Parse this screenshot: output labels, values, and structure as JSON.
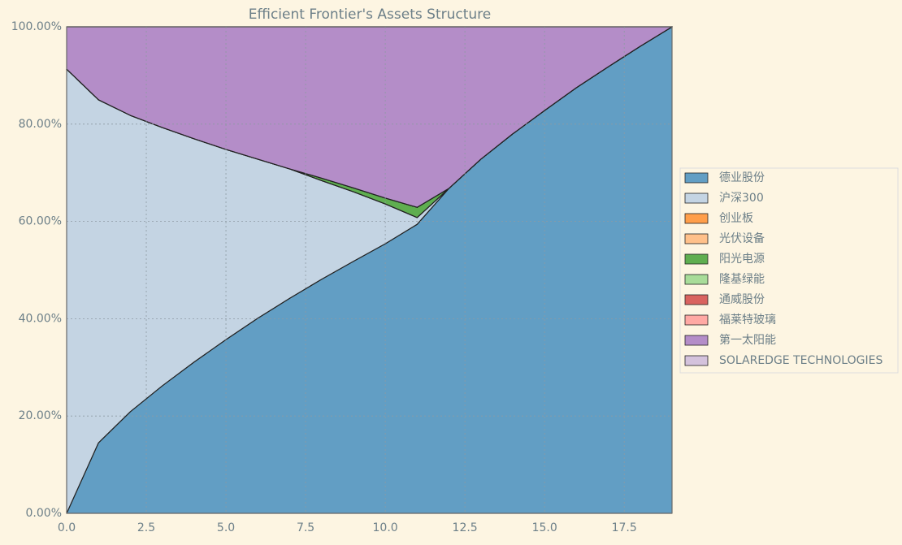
{
  "chart_data": {
    "type": "stacked_area",
    "title": "Efficient Frontier's Assets Structure",
    "x": [
      0,
      1,
      2,
      3,
      4,
      5,
      6,
      7,
      8,
      9,
      10,
      11,
      12,
      13,
      14,
      15,
      16,
      17,
      18,
      19
    ],
    "xlim": [
      0,
      19
    ],
    "xticks": [
      {
        "value": 0,
        "label": "0.0"
      },
      2.5,
      {
        "value": 5,
        "label": "5.0"
      },
      7.5,
      {
        "value": 10,
        "label": "10.0"
      },
      12.5,
      {
        "value": 15,
        "label": "15.0"
      },
      17.5
    ],
    "ylim": [
      0,
      100
    ],
    "yticks": [
      {
        "value": 0,
        "label": "0.00%"
      },
      {
        "value": 20,
        "label": "20.00%"
      },
      {
        "value": 40,
        "label": "40.00%"
      },
      {
        "value": 60,
        "label": "60.00%"
      },
      {
        "value": 80,
        "label": "80.00%"
      },
      {
        "value": 100,
        "label": "100.00%"
      }
    ],
    "grid": true,
    "legend": "right",
    "series": [
      {
        "name": "德业股份",
        "color": "#629ec4",
        "values": [
          0,
          14.5,
          20.9,
          26.2,
          31.1,
          35.7,
          40.1,
          44.2,
          48.1,
          51.8,
          55.4,
          59.4,
          66.8,
          72.8,
          78.0,
          82.8,
          87.5,
          91.8,
          96.0,
          100
        ]
      },
      {
        "name": "沪深300",
        "color": "#c4d4e3",
        "values": [
          91.3,
          70.5,
          60.9,
          53.1,
          45.9,
          39.1,
          32.7,
          26.6,
          20.3,
          14.3,
          8.2,
          1.4,
          0,
          0,
          0,
          0,
          0,
          0,
          0,
          0
        ]
      },
      {
        "name": "创业板",
        "color": "#ff9e4a",
        "values": [
          0,
          0,
          0,
          0,
          0,
          0,
          0,
          0,
          0,
          0,
          0,
          0,
          0,
          0,
          0,
          0,
          0,
          0,
          0,
          0
        ]
      },
      {
        "name": "光伏设备",
        "color": "#ffc08a",
        "values": [
          0,
          0,
          0,
          0,
          0,
          0,
          0,
          0,
          0,
          0,
          0,
          0,
          0,
          0,
          0,
          0,
          0,
          0,
          0,
          0
        ]
      },
      {
        "name": "阳光电源",
        "color": "#5fae50",
        "values": [
          0,
          0,
          0,
          0,
          0,
          0,
          0,
          0,
          0.5,
          0.8,
          1.2,
          2.1,
          0,
          0,
          0,
          0,
          0,
          0,
          0,
          0
        ]
      },
      {
        "name": "隆基绿能",
        "color": "#a8dc99",
        "values": [
          0,
          0,
          0,
          0,
          0,
          0,
          0,
          0,
          0,
          0,
          0,
          0,
          0,
          0,
          0,
          0,
          0,
          0,
          0,
          0
        ]
      },
      {
        "name": "通威股份",
        "color": "#d9635f",
        "values": [
          0,
          0,
          0,
          0,
          0,
          0,
          0,
          0,
          0,
          0,
          0,
          0,
          0,
          0,
          0,
          0,
          0,
          0,
          0,
          0
        ]
      },
      {
        "name": "福莱特玻璃",
        "color": "#ffa9a4",
        "values": [
          0,
          0,
          0,
          0,
          0,
          0,
          0,
          0,
          0,
          0,
          0,
          0,
          0,
          0,
          0,
          0,
          0,
          0,
          0,
          0
        ]
      },
      {
        "name": "第一太阳能",
        "color": "#b48dc8",
        "values": [
          8.7,
          15.0,
          18.2,
          20.7,
          23.0,
          25.2,
          27.2,
          29.2,
          31.1,
          33.1,
          35.2,
          37.1,
          33.2,
          27.2,
          22.0,
          17.2,
          12.5,
          8.2,
          4.0,
          0
        ]
      },
      {
        "name": "SOLAREDGE TECHNOLOGIES",
        "color": "#d4c2dc",
        "values": [
          0,
          0,
          0,
          0,
          0,
          0,
          0,
          0,
          0,
          0,
          0,
          0,
          0,
          0,
          0,
          0,
          0,
          0,
          0,
          0
        ]
      }
    ]
  }
}
